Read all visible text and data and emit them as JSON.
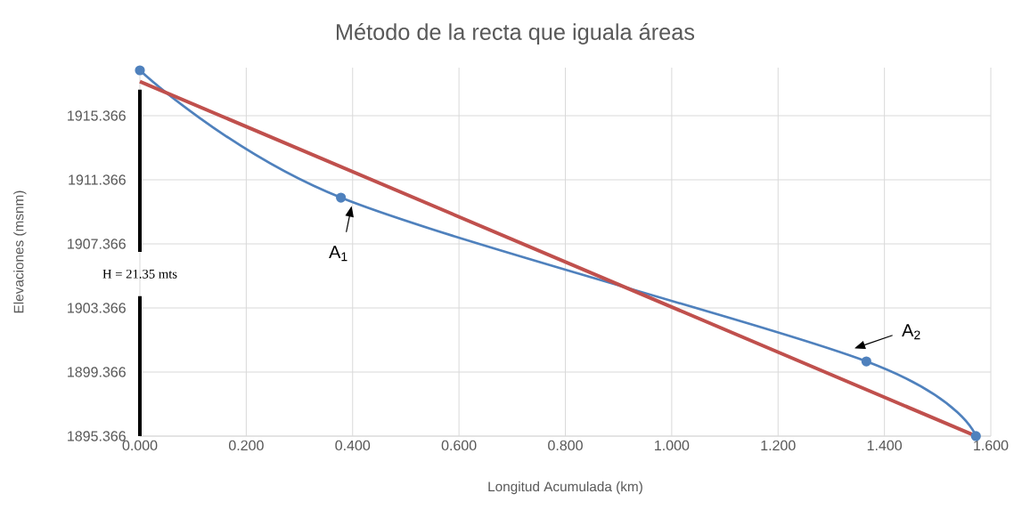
{
  "chart_data": {
    "type": "line",
    "title": "Método de la recta que iguala áreas",
    "xlabel": "Longitud Acumulada (km)",
    "ylabel": "Elevaciones (msnm)",
    "series": [
      {
        "color": "#4f81bd",
        "marker": "circle",
        "x": [
          0,
          0.378,
          1.366,
          1.572
        ],
        "values": [
          1918.2,
          1910.25,
          1900.03,
          1895.37
        ]
      },
      {
        "color": "#c0504d",
        "marker": "none",
        "x": [
          0,
          1.572
        ],
        "values": [
          1917.5,
          1895.37
        ]
      }
    ],
    "xlim": [
      0,
      1.6
    ],
    "ylim": [
      1895.366,
      1918.366
    ],
    "xticks": [
      {
        "value": 0,
        "label": "0.000"
      },
      {
        "value": 0.2,
        "label": "0.200"
      },
      {
        "value": 0.4,
        "label": "0.400"
      },
      {
        "value": 0.6,
        "label": "0.600"
      },
      {
        "value": 0.8,
        "label": "0.800"
      },
      {
        "value": 1.0,
        "label": "1.000"
      },
      {
        "value": 1.2,
        "label": "1.200"
      },
      {
        "value": 1.4,
        "label": "1.400"
      },
      {
        "value": 1.6,
        "label": "1.600"
      }
    ],
    "yticks": [
      1895.366,
      1899.366,
      1903.366,
      1907.366,
      1911.366,
      1915.366
    ],
    "grid": true,
    "annotations": [
      {
        "text": "A$_{1}$",
        "x": 0.378,
        "y": 1910.25
      },
      {
        "text": "A$_{2}$",
        "x": 1.366,
        "y": 1900.03
      },
      "H = 21.35 mts"
    ],
    "ref_lines": [
      {
        "axis": "x",
        "value": 0,
        "color": "#000000"
      }
    ]
  }
}
